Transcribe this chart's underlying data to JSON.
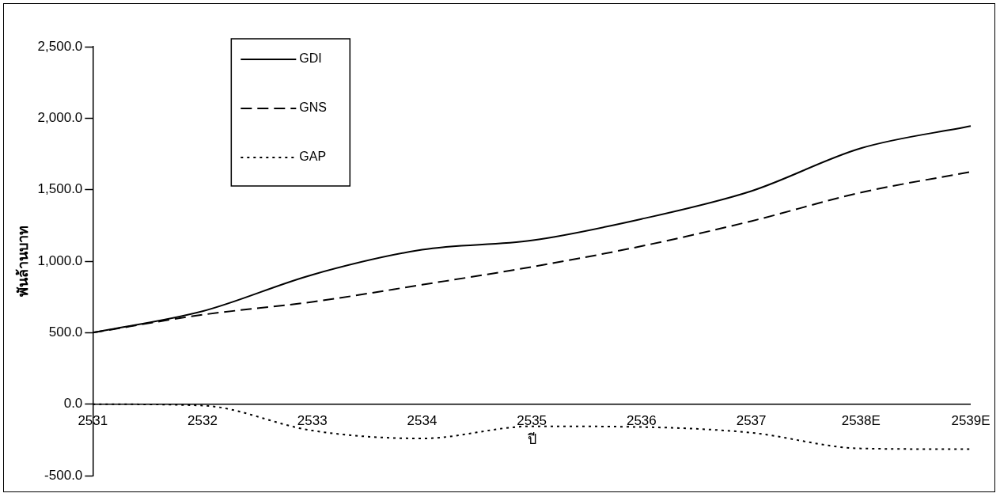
{
  "chart_data": {
    "type": "line",
    "xlabel": "ปี",
    "ylabel": "พันล้านบาท",
    "categories": [
      "2531",
      "2532",
      "2533",
      "2534",
      "2535",
      "2536",
      "2537",
      "2538E",
      "2539E"
    ],
    "series": [
      {
        "name": "GDI",
        "color": "#000000",
        "line_style": "solid",
        "values": [
          500,
          650,
          905,
          1080,
          1145,
          1295,
          1490,
          1790,
          1945
        ]
      },
      {
        "name": "GNS",
        "color": "#000000",
        "line_style": "dashed",
        "values": [
          500,
          625,
          715,
          835,
          960,
          1105,
          1280,
          1480,
          1625
        ]
      },
      {
        "name": "GAP",
        "color": "#000000",
        "line_style": "dotted",
        "values": [
          0,
          -10,
          -185,
          -240,
          -155,
          -160,
          -200,
          -310,
          -315
        ]
      }
    ],
    "ylim": [
      -500,
      2500
    ],
    "yticks": [
      {
        "value": -500,
        "label": "-500.0"
      },
      {
        "value": 0,
        "label": "0.0"
      },
      {
        "value": 500,
        "label": "500.0"
      },
      {
        "value": 1000,
        "label": "1,000.0"
      },
      {
        "value": 1500,
        "label": "1,500.0"
      },
      {
        "value": 2000,
        "label": "2,000.0"
      },
      {
        "value": 2500,
        "label": "2,500.0"
      }
    ],
    "grid": false,
    "legend": "top left",
    "marker": "none"
  }
}
